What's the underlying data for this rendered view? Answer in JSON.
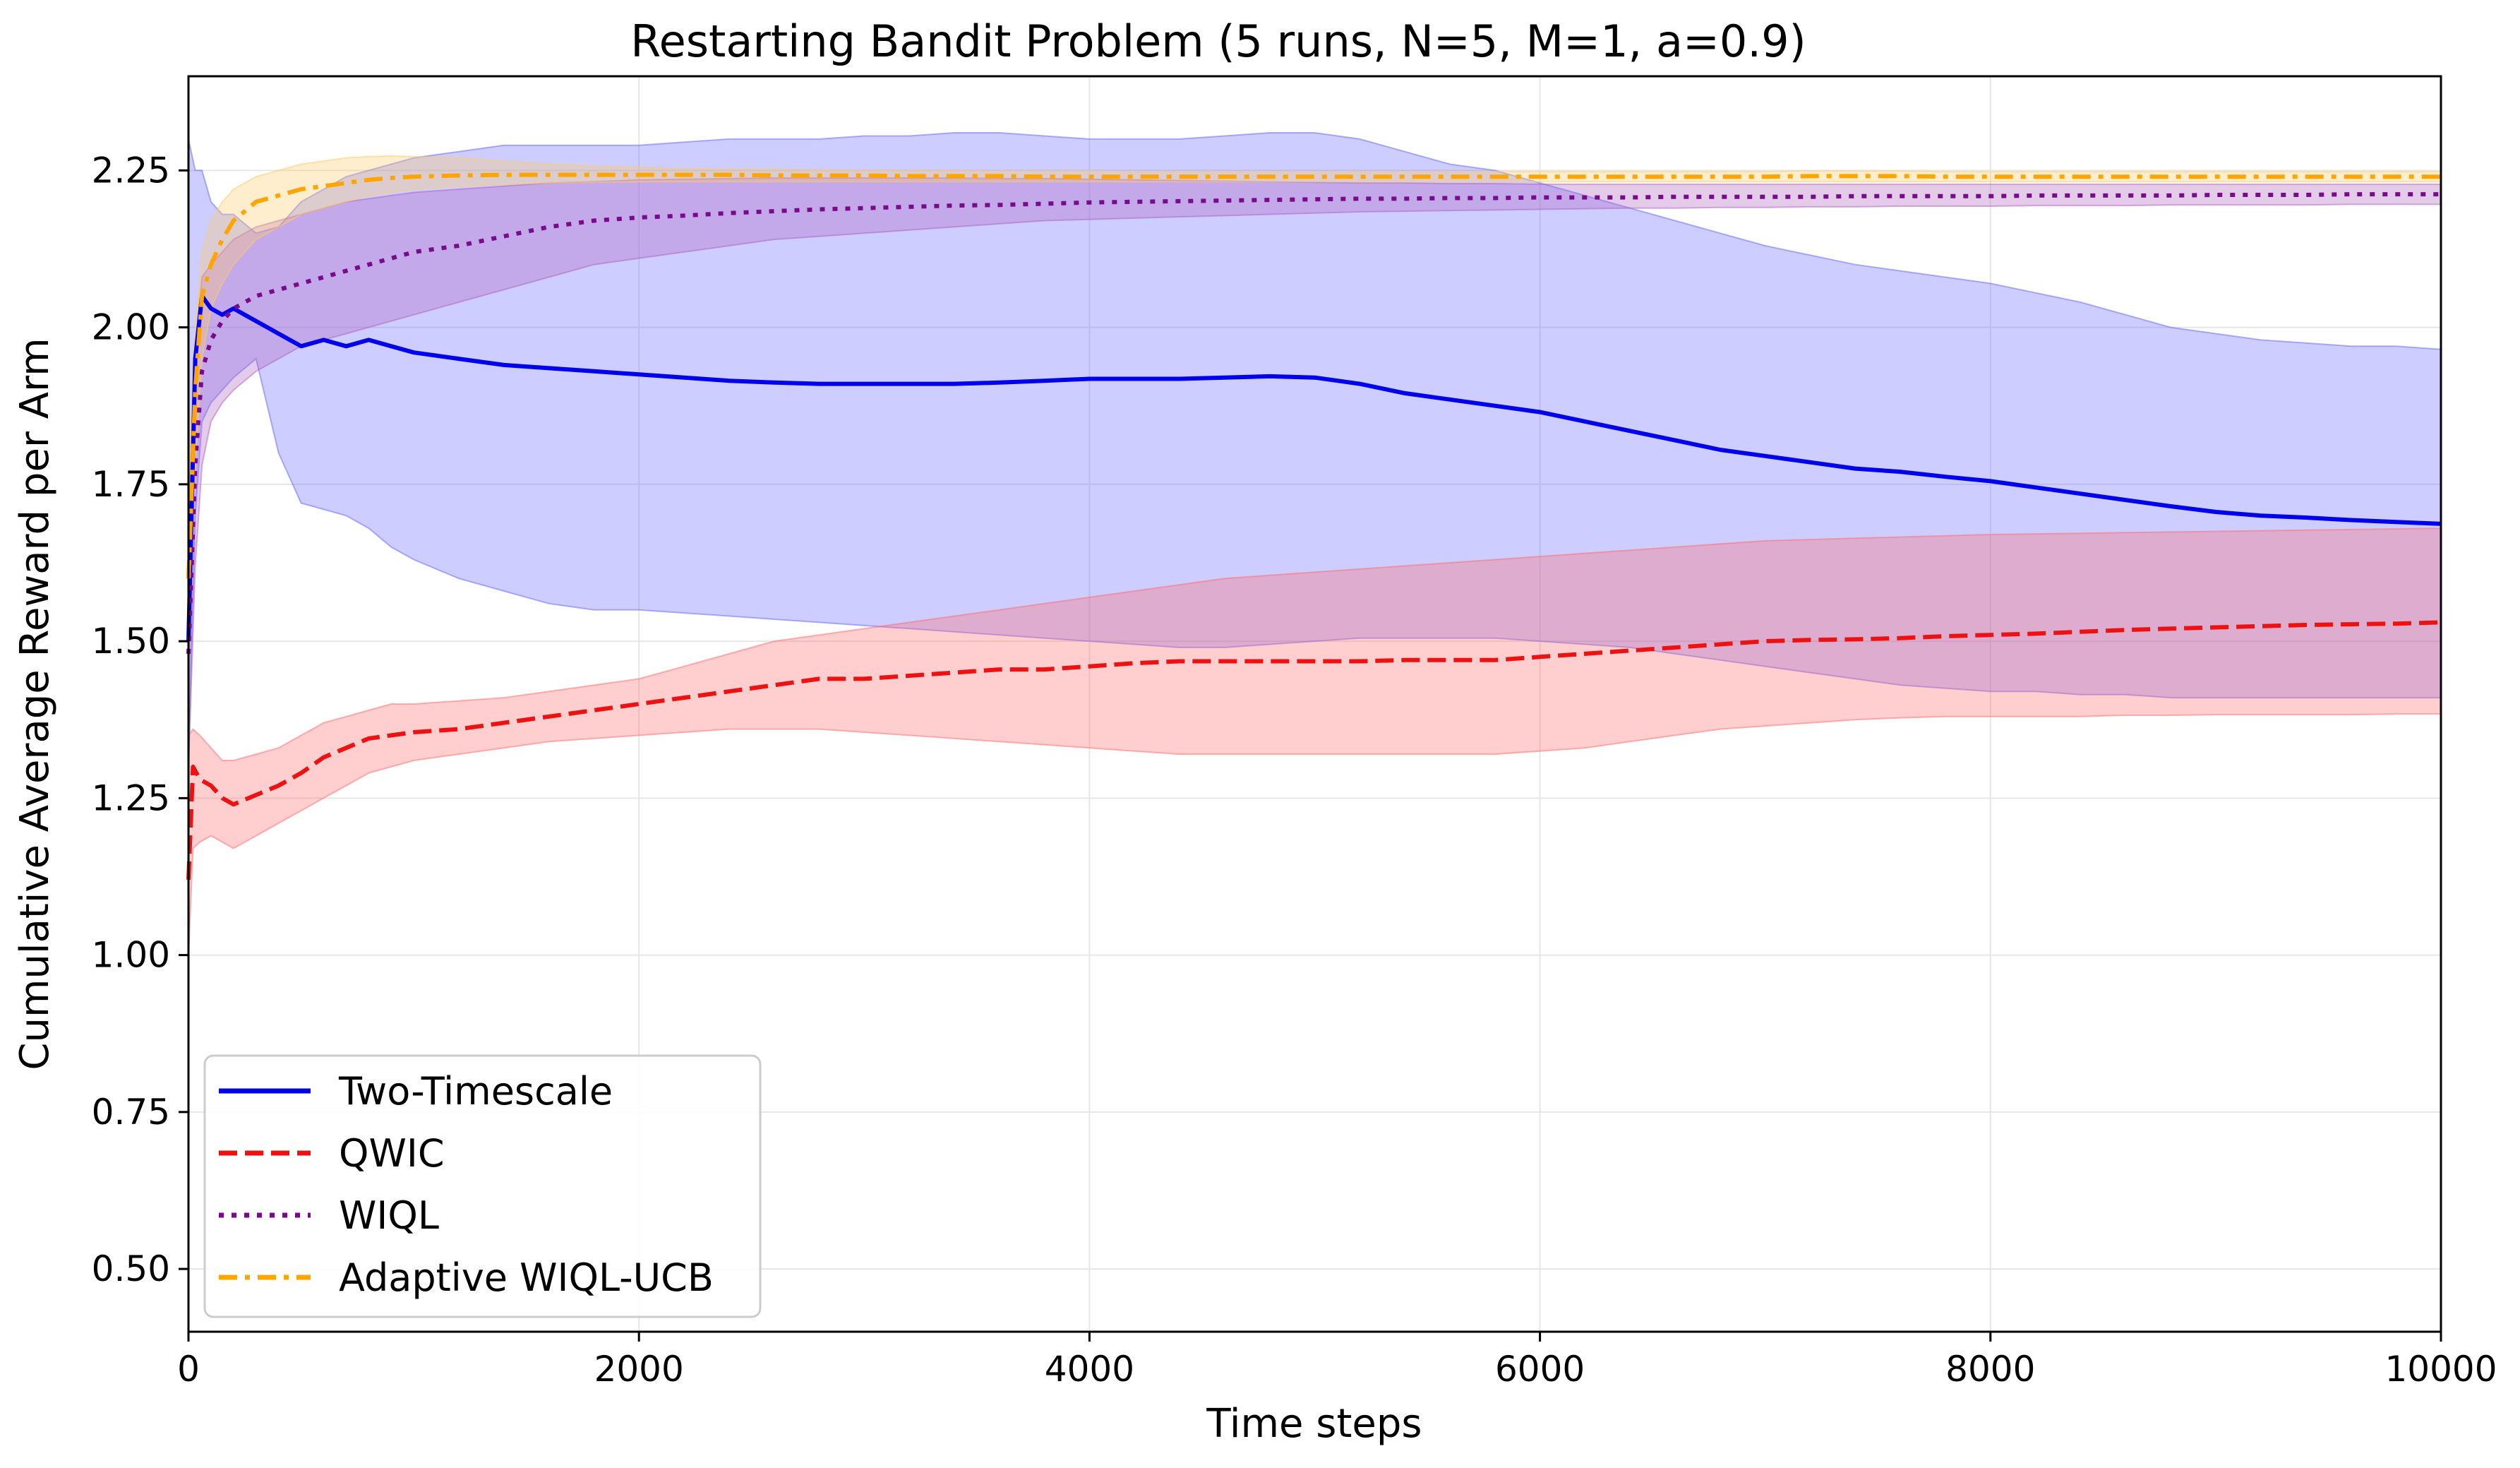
{
  "chart_data": {
    "type": "line",
    "title": "Restarting Bandit Problem (5 runs, N=5, M=1, a=0.9)",
    "xlabel": "Time steps",
    "ylabel": "Cumulative Average Reward per Arm",
    "xlim": [
      0,
      10000
    ],
    "ylim": [
      0.4,
      2.4
    ],
    "xticks": [
      0,
      2000,
      4000,
      6000,
      8000,
      10000
    ],
    "xtick_labels": [
      "0",
      "2000",
      "4000",
      "6000",
      "8000",
      "10000"
    ],
    "yticks": [
      0.5,
      0.75,
      1.0,
      1.25,
      1.5,
      1.75,
      2.0,
      2.25
    ],
    "ytick_labels": [
      "0.50",
      "0.75",
      "1.00",
      "1.25",
      "1.50",
      "1.75",
      "2.00",
      "2.25"
    ],
    "grid": true,
    "legend_position": "lower-left",
    "series": [
      {
        "name": "Two-Timescale",
        "color": "#0000ee",
        "linestyle": "solid",
        "x": [
          0,
          30,
          60,
          100,
          150,
          200,
          300,
          400,
          500,
          600,
          700,
          800,
          900,
          1000,
          1200,
          1400,
          1600,
          1800,
          2000,
          2200,
          2400,
          2600,
          2800,
          3000,
          3200,
          3400,
          3600,
          3800,
          4000,
          4200,
          4400,
          4600,
          4800,
          5000,
          5200,
          5400,
          5600,
          5800,
          6000,
          6200,
          6400,
          6600,
          6800,
          7000,
          7200,
          7400,
          7600,
          7800,
          8000,
          8200,
          8400,
          8600,
          8800,
          9000,
          9200,
          9400,
          9600,
          9800,
          10000
        ],
        "y": [
          1.5,
          1.95,
          2.05,
          2.03,
          2.02,
          2.03,
          2.01,
          1.99,
          1.97,
          1.98,
          1.97,
          1.98,
          1.97,
          1.96,
          1.95,
          1.94,
          1.935,
          1.93,
          1.925,
          1.92,
          1.915,
          1.912,
          1.91,
          1.91,
          1.91,
          1.91,
          1.912,
          1.915,
          1.918,
          1.918,
          1.918,
          1.92,
          1.922,
          1.92,
          1.91,
          1.895,
          1.885,
          1.875,
          1.865,
          1.85,
          1.835,
          1.82,
          1.805,
          1.795,
          1.785,
          1.775,
          1.77,
          1.762,
          1.755,
          1.745,
          1.735,
          1.725,
          1.715,
          1.706,
          1.7,
          1.697,
          1.693,
          1.69,
          1.687
        ],
        "band_low": [
          1.3,
          1.7,
          1.85,
          1.88,
          1.9,
          1.92,
          1.95,
          1.8,
          1.72,
          1.71,
          1.7,
          1.68,
          1.65,
          1.63,
          1.6,
          1.58,
          1.56,
          1.55,
          1.55,
          1.545,
          1.54,
          1.535,
          1.53,
          1.525,
          1.52,
          1.515,
          1.51,
          1.505,
          1.5,
          1.495,
          1.49,
          1.49,
          1.495,
          1.5,
          1.505,
          1.505,
          1.505,
          1.505,
          1.5,
          1.495,
          1.49,
          1.48,
          1.47,
          1.46,
          1.45,
          1.44,
          1.43,
          1.425,
          1.42,
          1.42,
          1.415,
          1.415,
          1.41,
          1.41,
          1.41,
          1.41,
          1.41,
          1.41,
          1.41
        ],
        "band_high": [
          2.3,
          2.25,
          2.25,
          2.2,
          2.18,
          2.18,
          2.15,
          2.16,
          2.2,
          2.22,
          2.24,
          2.25,
          2.26,
          2.27,
          2.28,
          2.29,
          2.29,
          2.29,
          2.29,
          2.295,
          2.3,
          2.3,
          2.3,
          2.305,
          2.305,
          2.31,
          2.31,
          2.305,
          2.3,
          2.3,
          2.3,
          2.305,
          2.31,
          2.31,
          2.3,
          2.28,
          2.26,
          2.25,
          2.23,
          2.21,
          2.19,
          2.17,
          2.15,
          2.13,
          2.115,
          2.1,
          2.09,
          2.08,
          2.07,
          2.055,
          2.04,
          2.02,
          2.0,
          1.99,
          1.98,
          1.975,
          1.97,
          1.97,
          1.965
        ]
      },
      {
        "name": "QWIC",
        "color": "#ee1111",
        "linestyle": "dashed",
        "x": [
          0,
          20,
          50,
          100,
          150,
          200,
          300,
          400,
          500,
          600,
          700,
          800,
          900,
          1000,
          1200,
          1400,
          1600,
          1800,
          2000,
          2200,
          2400,
          2600,
          2800,
          3000,
          3200,
          3400,
          3600,
          3800,
          4000,
          4200,
          4400,
          4600,
          4800,
          5000,
          5200,
          5400,
          5600,
          5800,
          6000,
          6200,
          6400,
          6600,
          6800,
          7000,
          7200,
          7400,
          7600,
          7800,
          8000,
          8200,
          8400,
          8600,
          8800,
          9000,
          9200,
          9400,
          9600,
          9800,
          10000
        ],
        "y": [
          1.12,
          1.3,
          1.28,
          1.27,
          1.25,
          1.24,
          1.255,
          1.27,
          1.29,
          1.315,
          1.33,
          1.345,
          1.35,
          1.355,
          1.36,
          1.37,
          1.38,
          1.39,
          1.4,
          1.41,
          1.42,
          1.43,
          1.44,
          1.44,
          1.445,
          1.45,
          1.455,
          1.455,
          1.46,
          1.465,
          1.468,
          1.468,
          1.468,
          1.468,
          1.468,
          1.47,
          1.47,
          1.47,
          1.475,
          1.48,
          1.485,
          1.49,
          1.495,
          1.5,
          1.502,
          1.503,
          1.505,
          1.508,
          1.51,
          1.512,
          1.515,
          1.518,
          1.52,
          1.522,
          1.524,
          1.526,
          1.527,
          1.528,
          1.53
        ],
        "band_low": [
          1.0,
          1.17,
          1.18,
          1.19,
          1.18,
          1.17,
          1.19,
          1.21,
          1.23,
          1.25,
          1.27,
          1.29,
          1.3,
          1.31,
          1.32,
          1.33,
          1.34,
          1.345,
          1.35,
          1.355,
          1.36,
          1.36,
          1.36,
          1.355,
          1.35,
          1.345,
          1.34,
          1.335,
          1.33,
          1.325,
          1.32,
          1.32,
          1.32,
          1.32,
          1.32,
          1.32,
          1.32,
          1.32,
          1.325,
          1.33,
          1.34,
          1.35,
          1.36,
          1.365,
          1.37,
          1.375,
          1.378,
          1.38,
          1.38,
          1.38,
          1.38,
          1.382,
          1.382,
          1.383,
          1.383,
          1.383,
          1.383,
          1.384,
          1.384
        ],
        "band_high": [
          1.35,
          1.36,
          1.35,
          1.33,
          1.31,
          1.31,
          1.32,
          1.33,
          1.35,
          1.37,
          1.38,
          1.39,
          1.4,
          1.4,
          1.405,
          1.41,
          1.42,
          1.43,
          1.44,
          1.46,
          1.48,
          1.5,
          1.51,
          1.52,
          1.53,
          1.54,
          1.55,
          1.56,
          1.57,
          1.58,
          1.59,
          1.6,
          1.605,
          1.61,
          1.615,
          1.62,
          1.625,
          1.63,
          1.635,
          1.64,
          1.645,
          1.65,
          1.655,
          1.66,
          1.662,
          1.664,
          1.666,
          1.668,
          1.67,
          1.671,
          1.672,
          1.673,
          1.674,
          1.675,
          1.676,
          1.677,
          1.678,
          1.679,
          1.68
        ]
      },
      {
        "name": "WIQL",
        "color": "#7a0a8c",
        "linestyle": "dotted",
        "x": [
          0,
          30,
          60,
          100,
          150,
          200,
          300,
          400,
          500,
          600,
          700,
          800,
          900,
          1000,
          1200,
          1400,
          1600,
          1800,
          2000,
          2200,
          2400,
          2600,
          2800,
          3000,
          3200,
          3400,
          3600,
          3800,
          4000,
          4200,
          4400,
          4600,
          4800,
          5000,
          5200,
          5400,
          5600,
          5800,
          6000,
          6200,
          6400,
          6600,
          6800,
          7000,
          7200,
          7400,
          7600,
          7800,
          8000,
          8200,
          8400,
          8600,
          8800,
          9000,
          9200,
          9400,
          9600,
          9800,
          10000
        ],
        "y": [
          1.48,
          1.78,
          1.93,
          1.98,
          2.01,
          2.03,
          2.05,
          2.06,
          2.07,
          2.08,
          2.09,
          2.1,
          2.11,
          2.12,
          2.13,
          2.145,
          2.16,
          2.17,
          2.175,
          2.178,
          2.182,
          2.185,
          2.188,
          2.19,
          2.192,
          2.194,
          2.195,
          2.197,
          2.199,
          2.2,
          2.201,
          2.202,
          2.203,
          2.204,
          2.205,
          2.205,
          2.206,
          2.206,
          2.207,
          2.207,
          2.207,
          2.208,
          2.208,
          2.208,
          2.208,
          2.209,
          2.209,
          2.209,
          2.209,
          2.21,
          2.21,
          2.21,
          2.21,
          2.211,
          2.211,
          2.211,
          2.212,
          2.212,
          2.212
        ],
        "band_low": [
          1.3,
          1.62,
          1.78,
          1.85,
          1.88,
          1.9,
          1.93,
          1.95,
          1.97,
          1.98,
          1.99,
          2.0,
          2.01,
          2.02,
          2.04,
          2.06,
          2.08,
          2.1,
          2.11,
          2.12,
          2.13,
          2.14,
          2.145,
          2.15,
          2.155,
          2.16,
          2.165,
          2.17,
          2.172,
          2.174,
          2.176,
          2.178,
          2.18,
          2.182,
          2.184,
          2.185,
          2.186,
          2.187,
          2.188,
          2.189,
          2.19,
          2.19,
          2.191,
          2.191,
          2.192,
          2.192,
          2.193,
          2.193,
          2.193,
          2.194,
          2.194,
          2.194,
          2.195,
          2.195,
          2.195,
          2.195,
          2.196,
          2.196,
          2.196
        ],
        "band_high": [
          1.7,
          1.95,
          2.08,
          2.1,
          2.12,
          2.14,
          2.16,
          2.17,
          2.18,
          2.19,
          2.2,
          2.205,
          2.21,
          2.215,
          2.22,
          2.225,
          2.23,
          2.232,
          2.235,
          2.236,
          2.237,
          2.238,
          2.238,
          2.238,
          2.238,
          2.238,
          2.237,
          2.237,
          2.236,
          2.235,
          2.234,
          2.233,
          2.232,
          2.231,
          2.23,
          2.23,
          2.229,
          2.229,
          2.228,
          2.228,
          2.228,
          2.228,
          2.228,
          2.228,
          2.228,
          2.228,
          2.228,
          2.228,
          2.228,
          2.228,
          2.228,
          2.228,
          2.228,
          2.228,
          2.228,
          2.228,
          2.228,
          2.228,
          2.228
        ]
      },
      {
        "name": "Adaptive WIQL-UCB",
        "color": "#ffa500",
        "linestyle": "dashdot",
        "x": [
          0,
          30,
          60,
          100,
          150,
          200,
          300,
          400,
          500,
          600,
          700,
          800,
          900,
          1000,
          1200,
          1400,
          1600,
          1800,
          2000,
          2200,
          2400,
          2600,
          2800,
          3000,
          3200,
          3400,
          3600,
          3800,
          4000,
          4200,
          4400,
          4600,
          4800,
          5000,
          5200,
          5400,
          5600,
          5800,
          6000,
          6200,
          6400,
          6600,
          6800,
          7000,
          7200,
          7400,
          7600,
          7800,
          8000,
          8200,
          8400,
          8600,
          8800,
          9000,
          9200,
          9400,
          9600,
          9800,
          10000
        ],
        "y": [
          1.6,
          1.9,
          2.05,
          2.1,
          2.14,
          2.17,
          2.2,
          2.21,
          2.22,
          2.225,
          2.23,
          2.235,
          2.238,
          2.24,
          2.242,
          2.243,
          2.243,
          2.243,
          2.243,
          2.243,
          2.243,
          2.242,
          2.242,
          2.242,
          2.241,
          2.241,
          2.241,
          2.24,
          2.24,
          2.24,
          2.24,
          2.24,
          2.24,
          2.24,
          2.24,
          2.24,
          2.24,
          2.24,
          2.24,
          2.24,
          2.24,
          2.24,
          2.24,
          2.24,
          2.241,
          2.241,
          2.241,
          2.24,
          2.24,
          2.24,
          2.24,
          2.24,
          2.24,
          2.24,
          2.24,
          2.24,
          2.24,
          2.24,
          2.24
        ],
        "band_low": [
          1.5,
          1.78,
          1.95,
          2.03,
          2.07,
          2.1,
          2.14,
          2.16,
          2.18,
          2.19,
          2.2,
          2.21,
          2.215,
          2.22,
          2.225,
          2.228,
          2.23,
          2.231,
          2.232,
          2.232,
          2.232,
          2.232,
          2.232,
          2.232,
          2.232,
          2.232,
          2.232,
          2.232,
          2.232,
          2.232,
          2.232,
          2.232,
          2.232,
          2.232,
          2.232,
          2.232,
          2.232,
          2.232,
          2.232,
          2.232,
          2.232,
          2.232,
          2.232,
          2.232,
          2.232,
          2.232,
          2.232,
          2.232,
          2.232,
          2.232,
          2.232,
          2.232,
          2.232,
          2.232,
          2.232,
          2.232,
          2.232,
          2.232,
          2.232
        ],
        "band_high": [
          1.75,
          2.0,
          2.12,
          2.17,
          2.2,
          2.22,
          2.24,
          2.25,
          2.26,
          2.265,
          2.27,
          2.272,
          2.273,
          2.272,
          2.27,
          2.265,
          2.26,
          2.257,
          2.255,
          2.253,
          2.252,
          2.252,
          2.251,
          2.25,
          2.25,
          2.25,
          2.249,
          2.249,
          2.249,
          2.248,
          2.248,
          2.248,
          2.248,
          2.248,
          2.248,
          2.248,
          2.248,
          2.248,
          2.248,
          2.248,
          2.248,
          2.248,
          2.248,
          2.248,
          2.249,
          2.249,
          2.249,
          2.248,
          2.248,
          2.248,
          2.248,
          2.248,
          2.248,
          2.248,
          2.248,
          2.248,
          2.248,
          2.248,
          2.248
        ]
      }
    ]
  },
  "colors": {
    "two_timescale_band": "#6666ff",
    "qwic_band": "#ff6b6b",
    "wiql_band": "#b060c0",
    "adaptive_band": "#ffcc66",
    "grid": "#e6e6e6",
    "axis": "#000000"
  }
}
